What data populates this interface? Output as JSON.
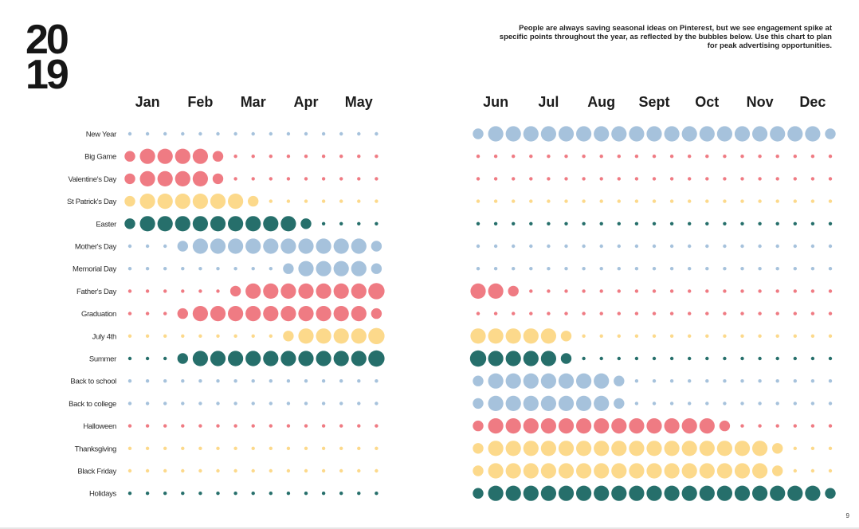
{
  "year": {
    "line1": "20",
    "line2": "19"
  },
  "intro": "People are always saving seasonal ideas on Pinterest, but we see engagement spike at specific points throughout the year, as reflected by the bubbles below. Use this chart to plan for peak advertising opportunities.",
  "page_number": "9",
  "colors": {
    "blue": "#a6c2dc",
    "red": "#ef7b83",
    "yellow": "#fcd98b",
    "teal": "#266f6b"
  },
  "chart_data": {
    "type": "bubble-matrix",
    "months": [
      "Jan",
      "Feb",
      "Mar",
      "Apr",
      "May",
      "Jun",
      "Jul",
      "Aug",
      "Sept",
      "Oct",
      "Nov",
      "Dec"
    ],
    "points_per_month": 3,
    "scale": {
      "min": 0,
      "max": 5
    },
    "rows": [
      {
        "label": "New Year",
        "color": "blue",
        "values": [
          0,
          0,
          0,
          0,
          0,
          0,
          0,
          0,
          0,
          0,
          0,
          0,
          0,
          0,
          0,
          2,
          4,
          4,
          4,
          4,
          4,
          4,
          4,
          4,
          4,
          4,
          4,
          4,
          4,
          4,
          4,
          4,
          4,
          4,
          4,
          2
        ]
      },
      {
        "label": "Big Game",
        "color": "red",
        "values": [
          2,
          4,
          4,
          4,
          4,
          2,
          0,
          0,
          0,
          0,
          0,
          0,
          0,
          0,
          0,
          0,
          0,
          0,
          0,
          0,
          0,
          0,
          0,
          0,
          0,
          0,
          0,
          0,
          0,
          0,
          0,
          0,
          0,
          0,
          0,
          0
        ]
      },
      {
        "label": "Valentine's Day",
        "color": "red",
        "values": [
          2,
          4,
          4,
          4,
          4,
          2,
          0,
          0,
          0,
          0,
          0,
          0,
          0,
          0,
          0,
          0,
          0,
          0,
          0,
          0,
          0,
          0,
          0,
          0,
          0,
          0,
          0,
          0,
          0,
          0,
          0,
          0,
          0,
          0,
          0,
          0
        ]
      },
      {
        "label": "St Patrick's Day",
        "color": "yellow",
        "values": [
          2,
          4,
          4,
          4,
          4,
          4,
          4,
          2,
          0,
          0,
          0,
          0,
          0,
          0,
          0,
          0,
          0,
          0,
          0,
          0,
          0,
          0,
          0,
          0,
          0,
          0,
          0,
          0,
          0,
          0,
          0,
          0,
          0,
          0,
          0,
          0
        ]
      },
      {
        "label": "Easter",
        "color": "teal",
        "values": [
          2,
          4,
          4,
          4,
          4,
          4,
          4,
          4,
          4,
          4,
          2,
          0,
          0,
          0,
          0,
          0,
          0,
          0,
          0,
          0,
          0,
          0,
          0,
          0,
          0,
          0,
          0,
          0,
          0,
          0,
          0,
          0,
          0,
          0,
          0,
          0
        ]
      },
      {
        "label": "Mother's Day",
        "color": "blue",
        "values": [
          0,
          0,
          0,
          2,
          4,
          4,
          4,
          4,
          4,
          4,
          4,
          4,
          4,
          4,
          2,
          0,
          0,
          0,
          0,
          0,
          0,
          0,
          0,
          0,
          0,
          0,
          0,
          0,
          0,
          0,
          0,
          0,
          0,
          0,
          0,
          0
        ]
      },
      {
        "label": "Memorial Day",
        "color": "blue",
        "values": [
          0,
          0,
          0,
          0,
          0,
          0,
          0,
          0,
          0,
          2,
          4,
          4,
          4,
          4,
          2,
          0,
          0,
          0,
          0,
          0,
          0,
          0,
          0,
          0,
          0,
          0,
          0,
          0,
          0,
          0,
          0,
          0,
          0,
          0,
          0,
          0
        ]
      },
      {
        "label": "Father's Day",
        "color": "red",
        "values": [
          0,
          0,
          0,
          0,
          0,
          0,
          2,
          4,
          4,
          4,
          4,
          4,
          4,
          4,
          5,
          4,
          4,
          2,
          0,
          0,
          0,
          0,
          0,
          0,
          0,
          0,
          0,
          0,
          0,
          0,
          0,
          0,
          0,
          0,
          0,
          0
        ]
      },
      {
        "label": "Graduation",
        "color": "red",
        "values": [
          0,
          0,
          0,
          2,
          4,
          4,
          4,
          4,
          4,
          4,
          4,
          4,
          4,
          4,
          2,
          0,
          0,
          0,
          0,
          0,
          0,
          0,
          0,
          0,
          0,
          0,
          0,
          0,
          0,
          0,
          0,
          0,
          0,
          0,
          0,
          0
        ]
      },
      {
        "label": "July 4th",
        "color": "yellow",
        "values": [
          0,
          0,
          0,
          0,
          0,
          0,
          0,
          0,
          0,
          2,
          4,
          4,
          4,
          4,
          5,
          4,
          4,
          4,
          4,
          4,
          2,
          0,
          0,
          0,
          0,
          0,
          0,
          0,
          0,
          0,
          0,
          0,
          0,
          0,
          0,
          0
        ]
      },
      {
        "label": "Summer",
        "color": "teal",
        "values": [
          0,
          0,
          0,
          2,
          4,
          4,
          4,
          4,
          4,
          4,
          4,
          4,
          4,
          4,
          5,
          5,
          4,
          4,
          4,
          4,
          2,
          0,
          0,
          0,
          0,
          0,
          0,
          0,
          0,
          0,
          0,
          0,
          0,
          0,
          0,
          0
        ]
      },
      {
        "label": "Back to school",
        "color": "blue",
        "values": [
          0,
          0,
          0,
          0,
          0,
          0,
          0,
          0,
          0,
          0,
          0,
          0,
          0,
          0,
          0,
          2,
          4,
          4,
          4,
          4,
          4,
          4,
          4,
          2,
          0,
          0,
          0,
          0,
          0,
          0,
          0,
          0,
          0,
          0,
          0,
          0
        ]
      },
      {
        "label": "Back to college",
        "color": "blue",
        "values": [
          0,
          0,
          0,
          0,
          0,
          0,
          0,
          0,
          0,
          0,
          0,
          0,
          0,
          0,
          0,
          2,
          4,
          4,
          4,
          4,
          4,
          4,
          4,
          2,
          0,
          0,
          0,
          0,
          0,
          0,
          0,
          0,
          0,
          0,
          0,
          0
        ]
      },
      {
        "label": "Halloween",
        "color": "red",
        "values": [
          0,
          0,
          0,
          0,
          0,
          0,
          0,
          0,
          0,
          0,
          0,
          0,
          0,
          0,
          0,
          2,
          4,
          4,
          4,
          4,
          4,
          4,
          4,
          4,
          4,
          4,
          4,
          4,
          4,
          2,
          0,
          0,
          0,
          0,
          0,
          0
        ]
      },
      {
        "label": "Thanksgiving",
        "color": "yellow",
        "values": [
          0,
          0,
          0,
          0,
          0,
          0,
          0,
          0,
          0,
          0,
          0,
          0,
          0,
          0,
          0,
          2,
          4,
          4,
          4,
          4,
          4,
          4,
          4,
          4,
          4,
          4,
          4,
          4,
          4,
          4,
          4,
          4,
          2,
          0,
          0,
          0
        ]
      },
      {
        "label": "Black Friday",
        "color": "yellow",
        "values": [
          0,
          0,
          0,
          0,
          0,
          0,
          0,
          0,
          0,
          0,
          0,
          0,
          0,
          0,
          0,
          2,
          4,
          4,
          4,
          4,
          4,
          4,
          4,
          4,
          4,
          4,
          4,
          4,
          4,
          4,
          4,
          4,
          2,
          0,
          0,
          0
        ]
      },
      {
        "label": "Holidays",
        "color": "teal",
        "values": [
          0,
          0,
          0,
          0,
          0,
          0,
          0,
          0,
          0,
          0,
          0,
          0,
          0,
          0,
          0,
          2,
          4,
          4,
          4,
          4,
          4,
          4,
          4,
          4,
          4,
          4,
          4,
          4,
          4,
          4,
          4,
          4,
          4,
          4,
          4,
          2
        ]
      }
    ]
  }
}
